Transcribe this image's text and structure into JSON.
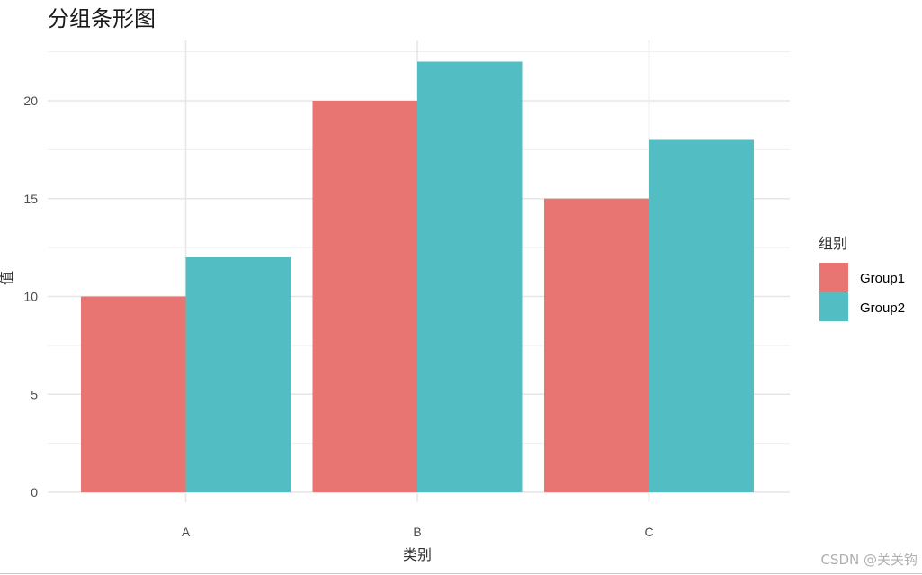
{
  "chart_data": {
    "type": "bar",
    "title": "分组条形图",
    "xlabel": "类别",
    "ylabel": "值",
    "categories": [
      "A",
      "B",
      "C"
    ],
    "series": [
      {
        "name": "Group1",
        "values": [
          10,
          20,
          15
        ],
        "color": "#E87571"
      },
      {
        "name": "Group2",
        "values": [
          12,
          22,
          18
        ],
        "color": "#52BEC4"
      }
    ],
    "yticks": [
      0,
      5,
      10,
      15,
      20
    ],
    "ylim": [
      0,
      22
    ],
    "legend_title": "组别",
    "legend_position": "right",
    "grid": true
  },
  "watermark": "CSDN @关关钩"
}
